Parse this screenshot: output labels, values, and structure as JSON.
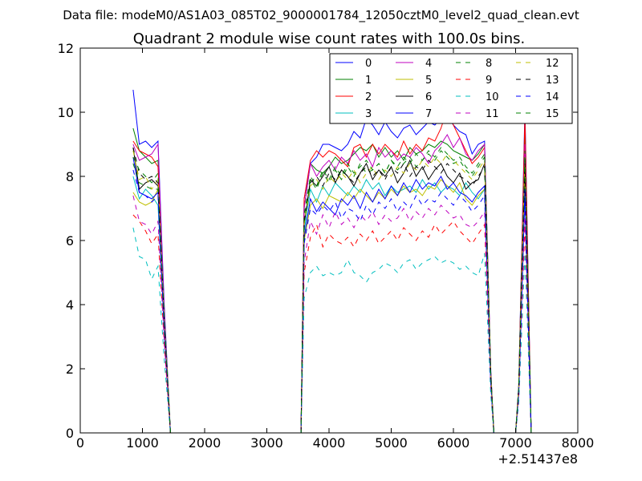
{
  "chart_data": {
    "type": "line",
    "suptitle": "Data file: modeM0/AS1A03_085T02_9000001784_12050cztM0_level2_quad_clean.evt",
    "title": "Quadrant 2 module wise count rates with 100.0s bins.",
    "xlabel": "",
    "ylabel": "",
    "xlim": [
      0,
      8000
    ],
    "ylim": [
      0,
      12
    ],
    "x_offset_label": "+2.51437e8",
    "x_ticks": [
      0,
      1000,
      2000,
      3000,
      4000,
      5000,
      6000,
      7000,
      8000
    ],
    "x_tick_labels": [
      "0",
      "1000",
      "2000",
      "3000",
      "4000",
      "5000",
      "6000",
      "7000",
      "8000"
    ],
    "y_ticks": [
      0,
      2,
      4,
      6,
      8,
      10,
      12
    ],
    "y_tick_labels": [
      "0",
      "2",
      "4",
      "6",
      "8",
      "10",
      "12"
    ],
    "grid": false,
    "legend_position": "top-right",
    "segment_a_x": [
      850,
      950,
      1050,
      1150,
      1250,
      1350,
      1450
    ],
    "segment_b_x": [
      3550,
      3600,
      3700,
      3800,
      3900,
      4000,
      4100,
      4200,
      4300,
      4400,
      4500,
      4600,
      4700,
      4800,
      4900,
      5000,
      5100,
      5200,
      5300,
      5400,
      5500,
      5600,
      5700,
      5800,
      5900,
      6000,
      6100,
      6200,
      6300,
      6400,
      6500,
      6600,
      6650
    ],
    "segment_c_x": [
      7000,
      7050,
      7150,
      7250
    ],
    "gap_x": [
      1450,
      3550,
      6650,
      7000
    ],
    "series": [
      {
        "name": "0",
        "color": "#0000ff",
        "dash": "solid",
        "seg_a": [
          10.7,
          9.0,
          9.1,
          8.9,
          9.1,
          4.0,
          0
        ],
        "seg_b": [
          0,
          7.3,
          8.4,
          8.6,
          9.0,
          9.0,
          8.9,
          8.8,
          9.0,
          9.4,
          9.2,
          9.8,
          9.6,
          9.3,
          9.7,
          9.4,
          9.2,
          9.5,
          9.6,
          9.3,
          9.5,
          9.7,
          9.6,
          9.8,
          9.9,
          9.6,
          9.4,
          9.3,
          8.7,
          9.0,
          9.1,
          2.0,
          0
        ],
        "seg_c": [
          0,
          1.5,
          10.1,
          0
        ]
      },
      {
        "name": "1",
        "color": "#008000",
        "dash": "solid",
        "seg_a": [
          9.5,
          8.8,
          8.6,
          8.4,
          8.5,
          3.8,
          0
        ],
        "seg_b": [
          0,
          7.0,
          8.4,
          8.2,
          8.1,
          8.3,
          8.6,
          8.4,
          8.5,
          8.7,
          8.9,
          8.8,
          9.0,
          8.6,
          8.9,
          8.6,
          8.8,
          8.5,
          8.9,
          8.7,
          8.8,
          9.0,
          8.9,
          9.1,
          9.0,
          8.8,
          8.7,
          8.6,
          8.5,
          8.7,
          9.0,
          1.9,
          0
        ],
        "seg_c": [
          0,
          1.4,
          9.6,
          0
        ]
      },
      {
        "name": "2",
        "color": "#ff0000",
        "dash": "solid",
        "seg_a": [
          9.1,
          8.8,
          8.7,
          8.6,
          8.3,
          3.7,
          0
        ],
        "seg_b": [
          0,
          7.3,
          8.5,
          8.8,
          8.6,
          8.8,
          8.7,
          8.5,
          8.3,
          8.9,
          9.0,
          8.6,
          9.0,
          8.7,
          9.0,
          8.8,
          8.6,
          9.1,
          8.7,
          9.0,
          8.8,
          9.2,
          9.1,
          9.5,
          10.1,
          9.6,
          9.2,
          8.8,
          8.4,
          8.6,
          8.9,
          1.9,
          0
        ],
        "seg_c": [
          0,
          1.4,
          9.9,
          0
        ]
      },
      {
        "name": "3",
        "color": "#00bfbf",
        "dash": "solid",
        "seg_a": [
          8.0,
          7.3,
          7.6,
          7.4,
          7.1,
          3.3,
          0
        ],
        "seg_b": [
          0,
          6.3,
          7.6,
          7.2,
          7.7,
          7.4,
          7.8,
          7.6,
          7.4,
          7.7,
          7.5,
          7.9,
          7.6,
          7.8,
          7.4,
          7.7,
          7.5,
          7.6,
          7.7,
          7.5,
          7.9,
          7.6,
          7.8,
          7.5,
          7.7,
          7.6,
          7.4,
          7.8,
          7.5,
          7.3,
          7.6,
          1.7,
          0
        ],
        "seg_c": [
          0,
          1.3,
          7.6,
          0
        ]
      },
      {
        "name": "4",
        "color": "#bf00bf",
        "dash": "solid",
        "seg_a": [
          9.0,
          8.5,
          8.6,
          8.7,
          9.0,
          3.8,
          0
        ],
        "seg_b": [
          0,
          7.0,
          8.4,
          8.0,
          8.3,
          8.5,
          8.2,
          8.6,
          8.4,
          8.8,
          8.5,
          8.7,
          8.3,
          8.9,
          8.6,
          8.8,
          8.5,
          8.7,
          8.6,
          8.9,
          8.7,
          8.4,
          8.8,
          9.0,
          9.3,
          8.9,
          9.2,
          8.7,
          8.5,
          8.8,
          9.0,
          1.9,
          0
        ],
        "seg_c": [
          0,
          1.4,
          9.0,
          0
        ]
      },
      {
        "name": "5",
        "color": "#bfbf00",
        "dash": "solid",
        "seg_a": [
          7.5,
          7.2,
          7.1,
          7.2,
          7.6,
          3.2,
          0
        ],
        "seg_b": [
          0,
          6.0,
          7.1,
          7.3,
          7.0,
          7.4,
          7.3,
          7.2,
          7.5,
          7.3,
          7.6,
          7.4,
          7.2,
          7.5,
          7.3,
          7.6,
          7.4,
          7.7,
          7.5,
          7.6,
          7.4,
          7.7,
          7.6,
          7.9,
          7.7,
          7.5,
          7.8,
          7.3,
          7.1,
          7.4,
          7.6,
          1.6,
          0
        ],
        "seg_c": [
          0,
          1.2,
          7.8,
          0
        ]
      },
      {
        "name": "6",
        "color": "#000000",
        "dash": "solid",
        "seg_a": [
          8.9,
          7.6,
          7.8,
          7.9,
          7.7,
          3.4,
          0
        ],
        "seg_b": [
          0,
          6.5,
          7.9,
          7.7,
          8.0,
          8.3,
          7.8,
          8.2,
          8.0,
          7.7,
          8.1,
          8.4,
          7.9,
          8.2,
          8.0,
          8.3,
          7.8,
          8.1,
          8.5,
          8.0,
          8.3,
          7.9,
          8.2,
          8.4,
          8.0,
          7.8,
          8.1,
          7.6,
          7.8,
          7.9,
          8.4,
          1.8,
          0
        ],
        "seg_c": [
          0,
          1.3,
          8.4,
          0
        ]
      },
      {
        "name": "7",
        "color": "#0000ff",
        "dash": "solid",
        "seg_a": [
          8.6,
          7.5,
          7.4,
          7.3,
          7.5,
          3.3,
          0
        ],
        "seg_b": [
          0,
          6.1,
          7.3,
          6.9,
          7.2,
          7.0,
          6.8,
          7.3,
          7.1,
          7.4,
          7.0,
          7.5,
          7.2,
          7.6,
          7.3,
          7.7,
          7.4,
          7.8,
          7.5,
          7.9,
          7.6,
          7.8,
          7.7,
          8.0,
          7.6,
          7.8,
          7.5,
          7.4,
          7.2,
          7.5,
          7.7,
          1.6,
          0
        ],
        "seg_c": [
          0,
          1.3,
          7.6,
          0
        ]
      },
      {
        "name": "8",
        "color": "#008000",
        "dash": "dashed",
        "seg_a": [
          8.4,
          7.8,
          7.7,
          7.6,
          7.6,
          3.4,
          0
        ],
        "seg_b": [
          0,
          6.6,
          7.9,
          7.6,
          8.1,
          7.8,
          8.2,
          7.9,
          8.3,
          8.0,
          8.4,
          8.1,
          8.2,
          8.4,
          8.1,
          8.5,
          8.2,
          8.4,
          8.6,
          8.3,
          8.5,
          8.7,
          8.5,
          8.8,
          8.6,
          8.4,
          8.5,
          8.2,
          8.0,
          8.3,
          8.6,
          1.8,
          0
        ],
        "seg_c": [
          0,
          1.4,
          8.6,
          0
        ]
      },
      {
        "name": "9",
        "color": "#ff0000",
        "dash": "dashed",
        "seg_a": [
          6.8,
          6.6,
          6.3,
          5.9,
          6.2,
          2.8,
          0
        ],
        "seg_b": [
          0,
          5.0,
          6.1,
          6.5,
          5.8,
          6.2,
          6.0,
          5.9,
          6.1,
          5.8,
          6.2,
          6.0,
          6.3,
          5.9,
          6.1,
          6.3,
          6.0,
          6.4,
          6.2,
          6.0,
          6.3,
          6.1,
          6.5,
          6.2,
          6.4,
          6.6,
          6.3,
          6.1,
          5.9,
          6.2,
          6.5,
          1.4,
          0
        ],
        "seg_c": [
          0,
          1.1,
          6.5,
          0
        ]
      },
      {
        "name": "10",
        "color": "#00bfbf",
        "dash": "dashed",
        "seg_a": [
          6.4,
          5.5,
          5.4,
          4.8,
          5.2,
          2.3,
          0
        ],
        "seg_b": [
          0,
          4.2,
          5.0,
          5.2,
          4.9,
          5.0,
          4.9,
          5.0,
          5.4,
          5.0,
          4.9,
          4.7,
          5.0,
          5.1,
          5.3,
          5.2,
          5.0,
          5.3,
          5.4,
          5.1,
          5.3,
          5.4,
          5.5,
          5.3,
          5.4,
          5.3,
          5.1,
          5.2,
          5.0,
          4.9,
          5.6,
          1.2,
          0
        ],
        "seg_c": [
          0,
          0.9,
          5.6,
          0
        ]
      },
      {
        "name": "11",
        "color": "#bf00bf",
        "dash": "dashed",
        "seg_a": [
          7.4,
          6.6,
          6.5,
          6.2,
          6.6,
          2.9,
          0
        ],
        "seg_b": [
          0,
          5.3,
          6.6,
          6.2,
          6.8,
          6.4,
          6.9,
          6.5,
          6.7,
          6.4,
          6.8,
          6.6,
          6.9,
          6.5,
          6.8,
          6.6,
          6.7,
          7.0,
          6.6,
          6.9,
          6.7,
          7.0,
          6.8,
          7.1,
          6.9,
          6.7,
          6.8,
          6.5,
          6.4,
          6.6,
          6.9,
          1.5,
          0
        ],
        "seg_c": [
          0,
          1.1,
          6.9,
          0
        ]
      },
      {
        "name": "12",
        "color": "#bfbf00",
        "dash": "dashed",
        "seg_a": [
          8.8,
          7.9,
          8.0,
          7.6,
          7.9,
          3.5,
          0
        ],
        "seg_b": [
          0,
          6.5,
          7.7,
          7.9,
          7.6,
          8.0,
          7.8,
          8.1,
          7.9,
          8.2,
          7.8,
          8.1,
          8.3,
          7.9,
          8.2,
          8.0,
          8.3,
          8.1,
          8.4,
          8.2,
          8.5,
          8.3,
          8.6,
          8.4,
          8.7,
          8.5,
          8.3,
          8.1,
          7.9,
          8.2,
          8.5,
          1.8,
          0
        ],
        "seg_c": [
          0,
          1.4,
          8.6,
          0
        ]
      },
      {
        "name": "13",
        "color": "#000000",
        "dash": "dashed",
        "seg_a": [
          8.9,
          8.1,
          7.9,
          8.0,
          7.8,
          3.5,
          0
        ],
        "seg_b": [
          0,
          6.6,
          7.8,
          8.0,
          7.7,
          8.1,
          7.9,
          8.2,
          8.0,
          7.8,
          8.1,
          8.3,
          8.0,
          8.2,
          7.9,
          8.3,
          8.1,
          8.4,
          8.0,
          8.3,
          8.2,
          8.5,
          8.3,
          8.1,
          8.4,
          8.2,
          8.0,
          7.9,
          7.7,
          8.0,
          8.3,
          1.8,
          0
        ],
        "seg_c": [
          0,
          1.4,
          8.4,
          0
        ]
      },
      {
        "name": "14",
        "color": "#0000ff",
        "dash": "dashed",
        "seg_a": [
          8.2,
          7.5,
          7.4,
          7.2,
          7.4,
          3.2,
          0
        ],
        "seg_b": [
          0,
          5.9,
          7.0,
          6.8,
          7.1,
          6.9,
          7.2,
          6.7,
          7.0,
          6.9,
          6.6,
          7.1,
          6.8,
          7.2,
          7.0,
          7.3,
          6.9,
          7.2,
          7.0,
          7.4,
          7.1,
          7.3,
          7.2,
          7.5,
          7.3,
          7.1,
          7.4,
          7.2,
          6.9,
          7.1,
          7.4,
          1.6,
          0
        ],
        "seg_c": [
          0,
          1.2,
          7.4,
          0
        ]
      },
      {
        "name": "15",
        "color": "#008000",
        "dash": "dashed",
        "seg_a": [
          8.6,
          8.2,
          8.0,
          7.8,
          8.1,
          3.6,
          0
        ],
        "seg_b": [
          0,
          6.8,
          8.0,
          7.7,
          8.2,
          7.9,
          8.3,
          8.0,
          8.4,
          8.1,
          8.3,
          8.5,
          8.2,
          8.4,
          8.1,
          8.5,
          8.3,
          8.6,
          8.4,
          8.7,
          8.5,
          8.8,
          8.6,
          8.9,
          8.7,
          8.5,
          8.6,
          8.3,
          8.1,
          8.4,
          8.7,
          1.8,
          0
        ],
        "seg_c": [
          0,
          1.4,
          8.8,
          0
        ]
      }
    ]
  }
}
